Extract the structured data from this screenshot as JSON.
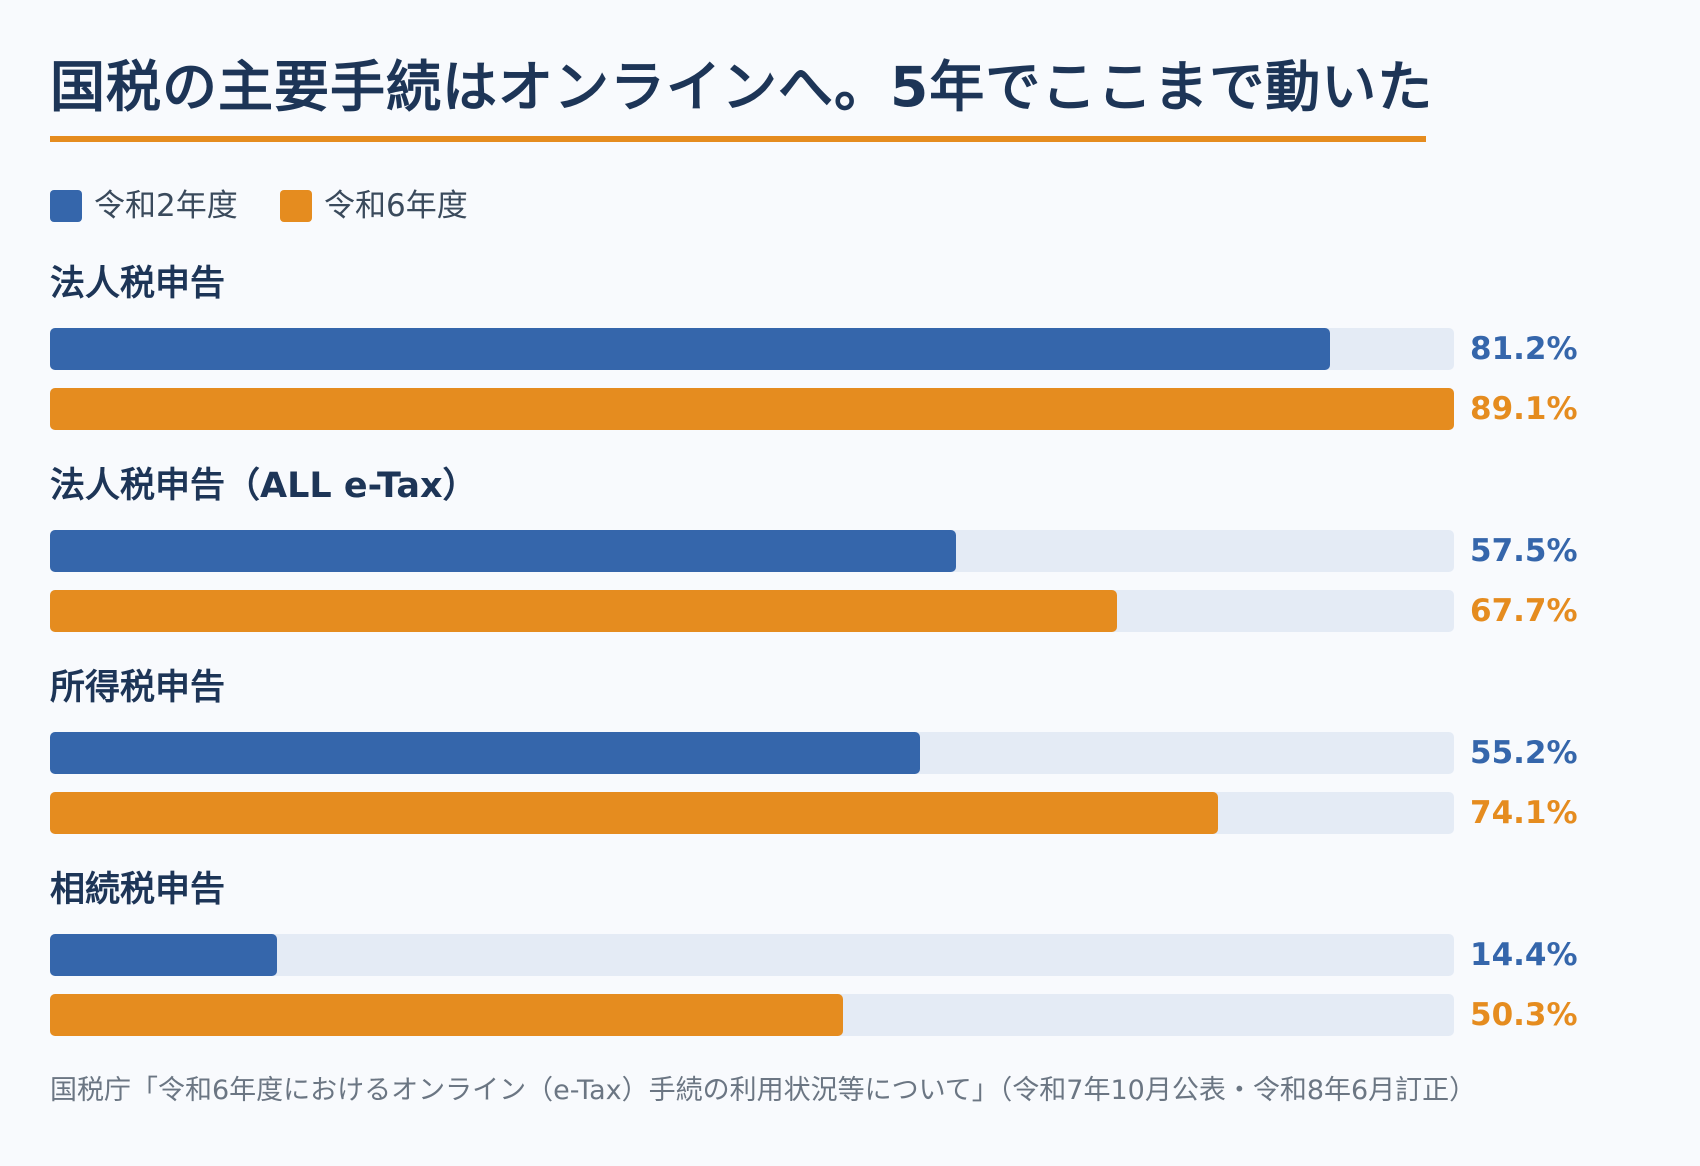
{
  "title": "国税の主要手続はオンラインへ。5年でここまで動いた",
  "source": "国税庁「令和6年度におけるオンライン（e-Tax）手続の利用状況等について」（令和7年10月公表・令和8年6月訂正）",
  "colors": {
    "series_a": "#3566ab",
    "series_b": "#e58c1f",
    "track": "#e4ebf5",
    "title": "#1d3557"
  },
  "chart_data": {
    "type": "bar",
    "orientation": "horizontal",
    "unit": "%",
    "categories": [
      "法人税申告",
      "法人税申告（ALL e-Tax）",
      "所得税申告",
      "相続税申告"
    ],
    "series": [
      {
        "name": "令和2年度",
        "color": "#3566ab",
        "values": [
          81.2,
          57.5,
          55.2,
          14.4
        ],
        "labels": [
          "81.2%",
          "57.5%",
          "55.2%",
          "14.4%"
        ]
      },
      {
        "name": "令和6年度",
        "color": "#e58c1f",
        "values": [
          89.1,
          67.7,
          74.1,
          50.3
        ],
        "labels": [
          "89.1%",
          "67.7%",
          "74.1%",
          "50.3%"
        ]
      }
    ],
    "xlim": [
      0,
      89.1
    ],
    "legend": "top-left",
    "grid": false
  }
}
